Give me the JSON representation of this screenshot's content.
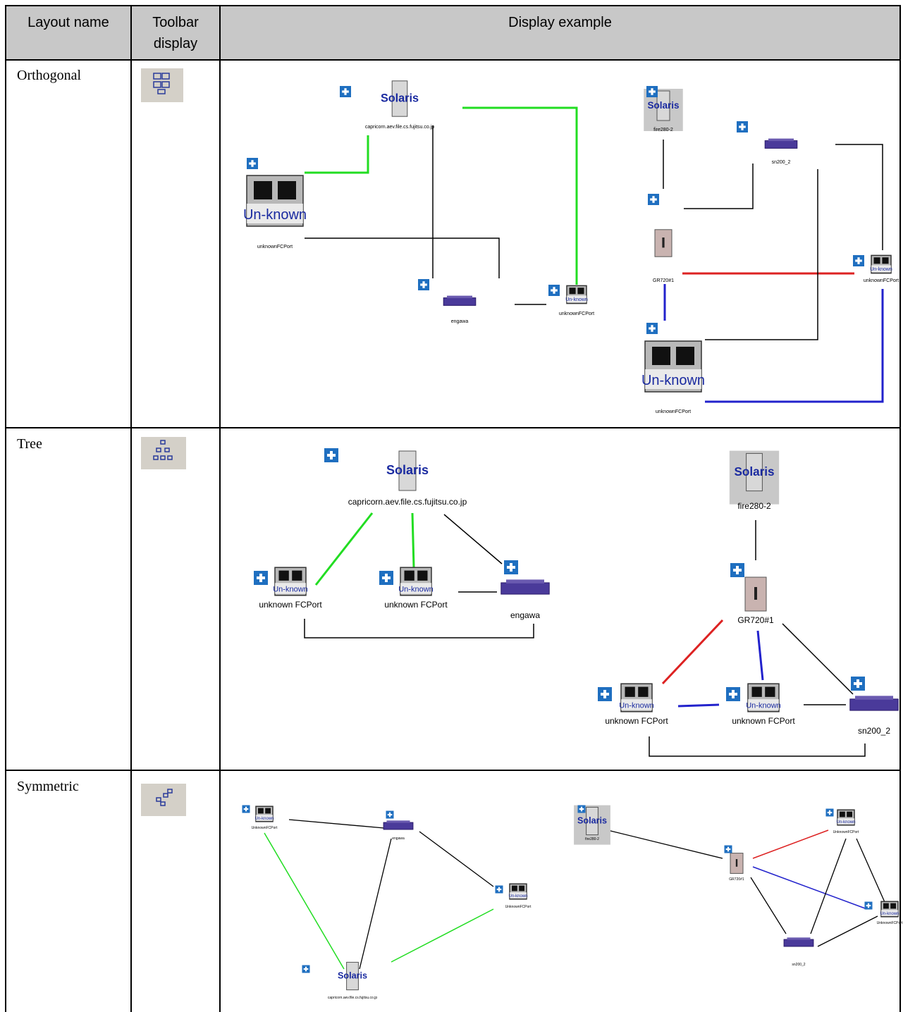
{
  "table": {
    "header": [
      "Layout name",
      "Toolbar display",
      "Display example"
    ],
    "rows": [
      {
        "layout": "Orthogonal",
        "nodes": [
          {
            "label": "capricorn.aev.file.cs.fujitsu.co.jp",
            "icon": "Solaris"
          },
          {
            "label": "unknownFCPort",
            "icon": "Un-known"
          },
          {
            "label": "engawa"
          },
          {
            "label": "unknownFCPort",
            "icon": "Un-known"
          },
          {
            "label": "fire280-2",
            "icon": "Solaris"
          },
          {
            "label": "sn200_2"
          },
          {
            "label": "GR720#1"
          },
          {
            "label": "unknownFCPort",
            "icon": "Un-known"
          },
          {
            "label": "unknownFCPort",
            "icon": "Un-known"
          }
        ]
      },
      {
        "layout": "Tree",
        "nodes": [
          {
            "label": "capricorn.aev.file.cs.fujitsu.co.jp",
            "icon": "Solaris"
          },
          {
            "label": "unknown FCPort",
            "icon": "Un-known"
          },
          {
            "label": "unknown FCPort",
            "icon": "Un-known"
          },
          {
            "label": "engawa"
          },
          {
            "label": "fire280-2",
            "icon": "Solaris"
          },
          {
            "label": "GR720#1"
          },
          {
            "label": "unknown FCPort",
            "icon": "Un-known"
          },
          {
            "label": "unknown FCPort",
            "icon": "Un-known"
          },
          {
            "label": "sn200_2"
          }
        ]
      },
      {
        "layout": "Symmetric",
        "nodes": [
          {
            "label": "UnknownFCPort",
            "icon": "Un-known"
          },
          {
            "label": "engawa"
          },
          {
            "label": "UnknownFCPort",
            "icon": "Un-known"
          },
          {
            "label": "capricorn.aev.file.cs.fujitsu.co.jp",
            "icon": "Solaris"
          },
          {
            "label": "fire280-2",
            "icon": "Solaris"
          },
          {
            "label": "GR720#1"
          },
          {
            "label": "UnknownFCPort",
            "icon": "Un-known"
          },
          {
            "label": "UnknownFCPort",
            "icon": "Un-known"
          },
          {
            "label": "sn200_2"
          }
        ]
      }
    ]
  }
}
